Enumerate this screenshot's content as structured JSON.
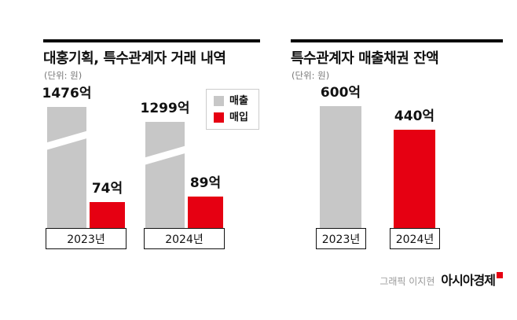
{
  "colors": {
    "bar_gray": "#c7c7c7",
    "bar_red": "#e60012",
    "text_black": "#111111",
    "unit_gray": "#777777",
    "credit_gray": "#999999"
  },
  "chart_data": [
    {
      "type": "bar",
      "title": "대홍기획, 특수관계자 거래 내역",
      "unit_label": "(단위: 원)",
      "categories": [
        "2023년",
        "2024년"
      ],
      "series": [
        {
          "name": "매출",
          "color": "#c7c7c7",
          "values": [
            1476,
            1299
          ],
          "value_labels": [
            "1476억",
            "1299억"
          ],
          "axis_break": true
        },
        {
          "name": "매입",
          "color": "#e60012",
          "values": [
            74,
            89
          ],
          "value_labels": [
            "74억",
            "89억"
          ]
        }
      ],
      "legend": [
        "매출",
        "매입"
      ],
      "legend_position": "top-right",
      "unit": "억 원"
    },
    {
      "type": "bar",
      "title": "특수관계자 매출채권 잔액",
      "unit_label": "(단위: 원)",
      "categories": [
        "2023년",
        "2024년"
      ],
      "values": [
        600,
        440
      ],
      "value_labels": [
        "600억",
        "440억"
      ],
      "bar_colors": [
        "#c7c7c7",
        "#e60012"
      ],
      "unit": "억 원"
    }
  ],
  "footer": {
    "credit": "그래픽 이지현",
    "brand": "아시아경제"
  }
}
